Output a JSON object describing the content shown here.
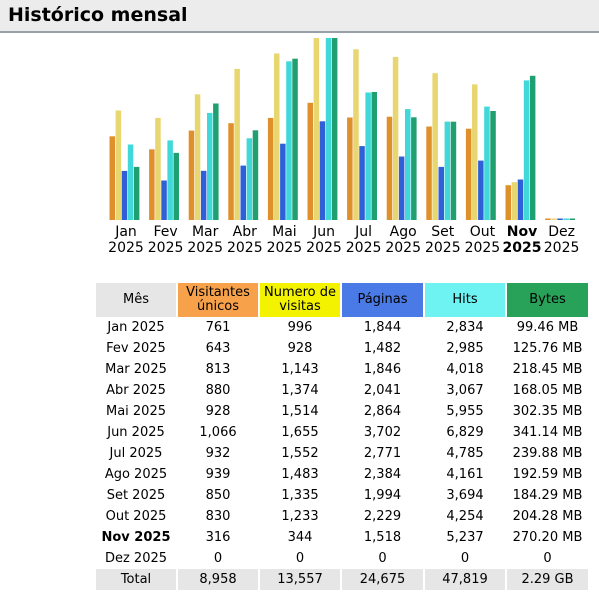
{
  "header": {
    "title": "Histórico mensal"
  },
  "colors": {
    "visitantes": "#e0902a",
    "visitas": "#e8d670",
    "paginas": "#3060d8",
    "hits": "#40d8d8",
    "bytes": "#20a070"
  },
  "chart_data": {
    "type": "bar",
    "categories": [
      "Jan 2025",
      "Fev 2025",
      "Mar 2025",
      "Abr 2025",
      "Mai 2025",
      "Jun 2025",
      "Jul 2025",
      "Ago 2025",
      "Set 2025",
      "Out 2025",
      "Nov 2025",
      "Dez 2025"
    ],
    "series": [
      {
        "name": "Visitantes únicos",
        "values": [
          761,
          643,
          813,
          880,
          928,
          1066,
          932,
          939,
          850,
          830,
          316,
          0
        ]
      },
      {
        "name": "Numero de visitas",
        "values": [
          996,
          928,
          1143,
          1374,
          1514,
          1655,
          1552,
          1483,
          1335,
          1233,
          344,
          0
        ]
      },
      {
        "name": "Páginas",
        "values": [
          1844,
          1482,
          1846,
          2041,
          2864,
          3702,
          2771,
          2384,
          1994,
          2229,
          1518,
          0
        ]
      },
      {
        "name": "Hits",
        "values": [
          2834,
          2985,
          4018,
          3067,
          5955,
          6829,
          4785,
          4161,
          3694,
          4254,
          5237,
          0
        ]
      },
      {
        "name": "Bytes",
        "values": [
          99.46,
          125.76,
          218.45,
          168.05,
          302.35,
          341.14,
          239.88,
          192.59,
          184.29,
          204.28,
          270.2,
          0
        ]
      }
    ]
  },
  "months": [
    {
      "m": "Jan",
      "y": "2025"
    },
    {
      "m": "Fev",
      "y": "2025"
    },
    {
      "m": "Mar",
      "y": "2025"
    },
    {
      "m": "Abr",
      "y": "2025"
    },
    {
      "m": "Mai",
      "y": "2025"
    },
    {
      "m": "Jun",
      "y": "2025"
    },
    {
      "m": "Jul",
      "y": "2025"
    },
    {
      "m": "Ago",
      "y": "2025"
    },
    {
      "m": "Set",
      "y": "2025"
    },
    {
      "m": "Out",
      "y": "2025"
    },
    {
      "m": "Nov",
      "y": "2025"
    },
    {
      "m": "Dez",
      "y": "2025"
    }
  ],
  "current_index": 10,
  "table": {
    "headers": {
      "month": "Mês",
      "visitantes": "Visitantes únicos",
      "visitas": "Numero de visitas",
      "paginas": "Páginas",
      "hits": "Hits",
      "bytes": "Bytes"
    },
    "rows": [
      [
        "Jan 2025",
        "761",
        "996",
        "1,844",
        "2,834",
        "99.46 MB"
      ],
      [
        "Fev 2025",
        "643",
        "928",
        "1,482",
        "2,985",
        "125.76 MB"
      ],
      [
        "Mar 2025",
        "813",
        "1,143",
        "1,846",
        "4,018",
        "218.45 MB"
      ],
      [
        "Abr 2025",
        "880",
        "1,374",
        "2,041",
        "3,067",
        "168.05 MB"
      ],
      [
        "Mai 2025",
        "928",
        "1,514",
        "2,864",
        "5,955",
        "302.35 MB"
      ],
      [
        "Jun 2025",
        "1,066",
        "1,655",
        "3,702",
        "6,829",
        "341.14 MB"
      ],
      [
        "Jul 2025",
        "932",
        "1,552",
        "2,771",
        "4,785",
        "239.88 MB"
      ],
      [
        "Ago 2025",
        "939",
        "1,483",
        "2,384",
        "4,161",
        "192.59 MB"
      ],
      [
        "Set 2025",
        "850",
        "1,335",
        "1,994",
        "3,694",
        "184.29 MB"
      ],
      [
        "Out 2025",
        "830",
        "1,233",
        "2,229",
        "4,254",
        "204.28 MB"
      ],
      [
        "Nov 2025",
        "316",
        "344",
        "1,518",
        "5,237",
        "270.20 MB"
      ],
      [
        "Dez 2025",
        "0",
        "0",
        "0",
        "0",
        "0"
      ]
    ],
    "total": [
      "Total",
      "8,958",
      "13,557",
      "24,675",
      "47,819",
      "2.29 GB"
    ]
  }
}
